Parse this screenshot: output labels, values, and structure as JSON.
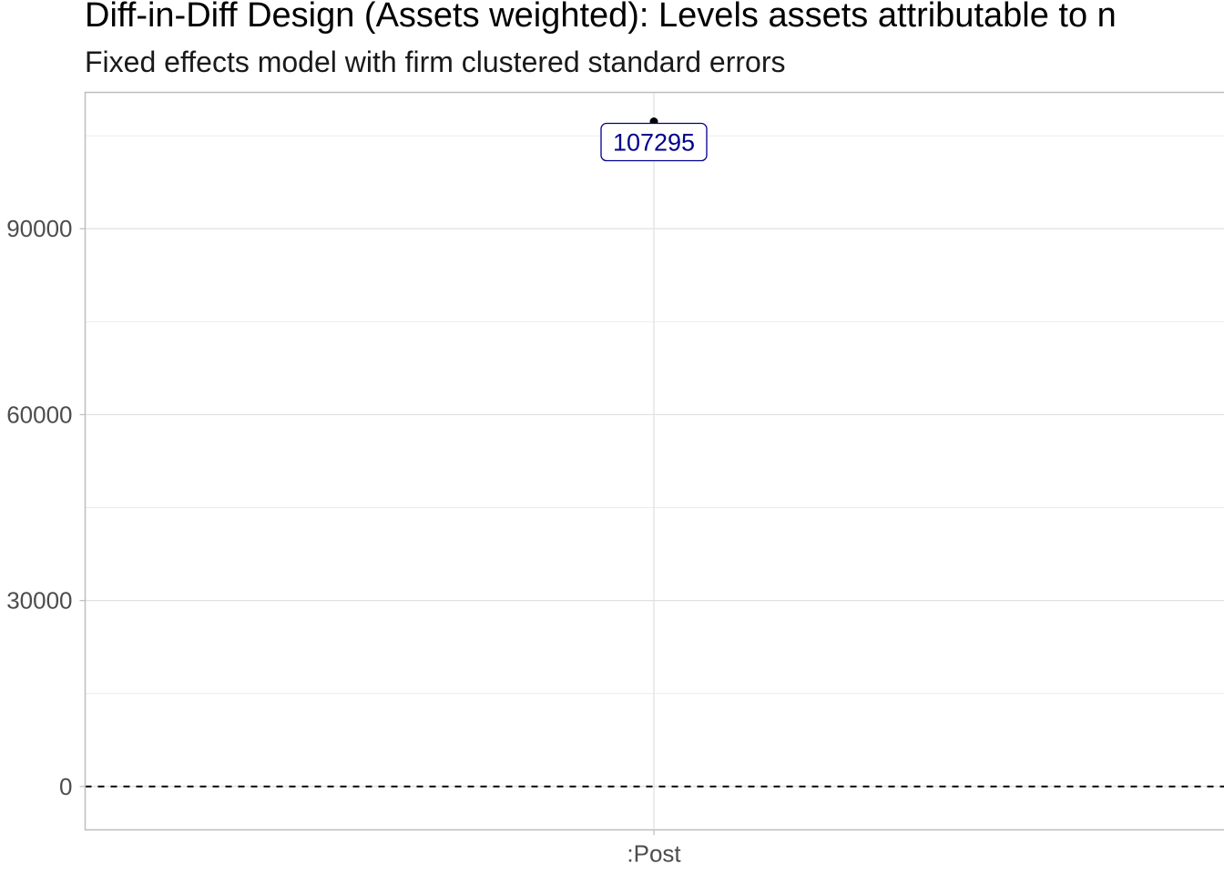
{
  "chart_data": {
    "type": "scatter",
    "title": "Diff-in-Diff Design (Assets weighted): Levels assets attributable to n",
    "subtitle": "Fixed effects model with firm clustered standard errors",
    "xlabel": "",
    "ylabel": "",
    "categories": [
      ":Post"
    ],
    "values": [
      107295
    ],
    "data_labels": [
      "107295"
    ],
    "ylim": [
      -7000,
      112000
    ],
    "yticks": [
      0,
      30000,
      60000,
      90000
    ],
    "ytick_labels": [
      "0",
      "30000",
      "60000",
      "90000"
    ],
    "reference_line": {
      "y": 0,
      "style": "dashed"
    },
    "grid": true,
    "colors": {
      "point": "#000000",
      "label_text": "#00008b",
      "label_border": "#00008b",
      "grid": "#e0e0e0",
      "panel_border": "#bebebe"
    }
  }
}
